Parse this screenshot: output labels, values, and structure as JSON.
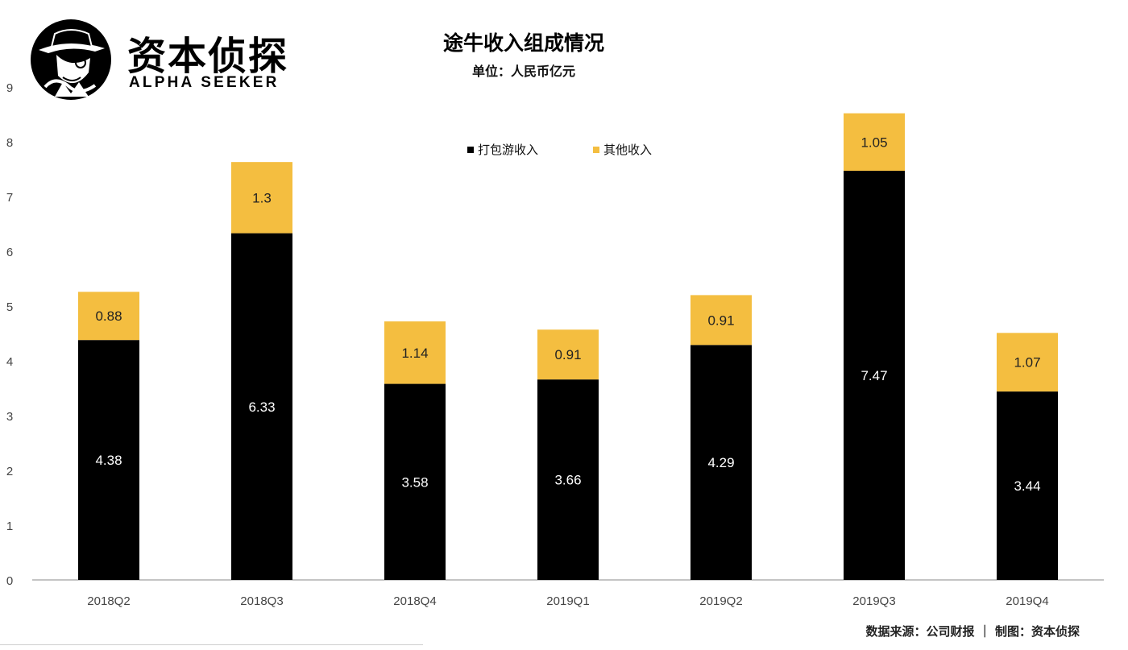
{
  "brand": {
    "name_cn": "资本侦探",
    "name_en": "ALPHA SEEKER",
    "logo_icon": "detective-hat-icon"
  },
  "colors": {
    "series_package": "#000000",
    "series_other": "#F4BE40",
    "axis": "#b0b0b0",
    "tick_text": "#444444"
  },
  "chart_data": {
    "type": "bar",
    "stacked": true,
    "title": "途牛收入组成情况",
    "subtitle": "单位：人民币亿元",
    "categories": [
      "2018Q2",
      "2018Q3",
      "2018Q4",
      "2019Q1",
      "2019Q2",
      "2019Q3",
      "2019Q4"
    ],
    "series": [
      {
        "name": "打包游收入",
        "color": "#000000",
        "values": [
          4.38,
          6.33,
          3.58,
          3.66,
          4.29,
          7.47,
          3.44
        ]
      },
      {
        "name": "其他收入",
        "color": "#F4BE40",
        "values": [
          0.88,
          1.3,
          1.14,
          0.91,
          0.91,
          1.05,
          1.07
        ]
      }
    ],
    "ylim": [
      0,
      9
    ],
    "yticks": [
      0,
      1,
      2,
      3,
      4,
      5,
      6,
      7,
      8,
      9
    ],
    "xlabel": "",
    "ylabel": "",
    "grid": false,
    "legend_position": "top-center",
    "data_labels": true
  },
  "footer": {
    "source": "数据来源：公司财报 ｜ 制图：资本侦探"
  }
}
